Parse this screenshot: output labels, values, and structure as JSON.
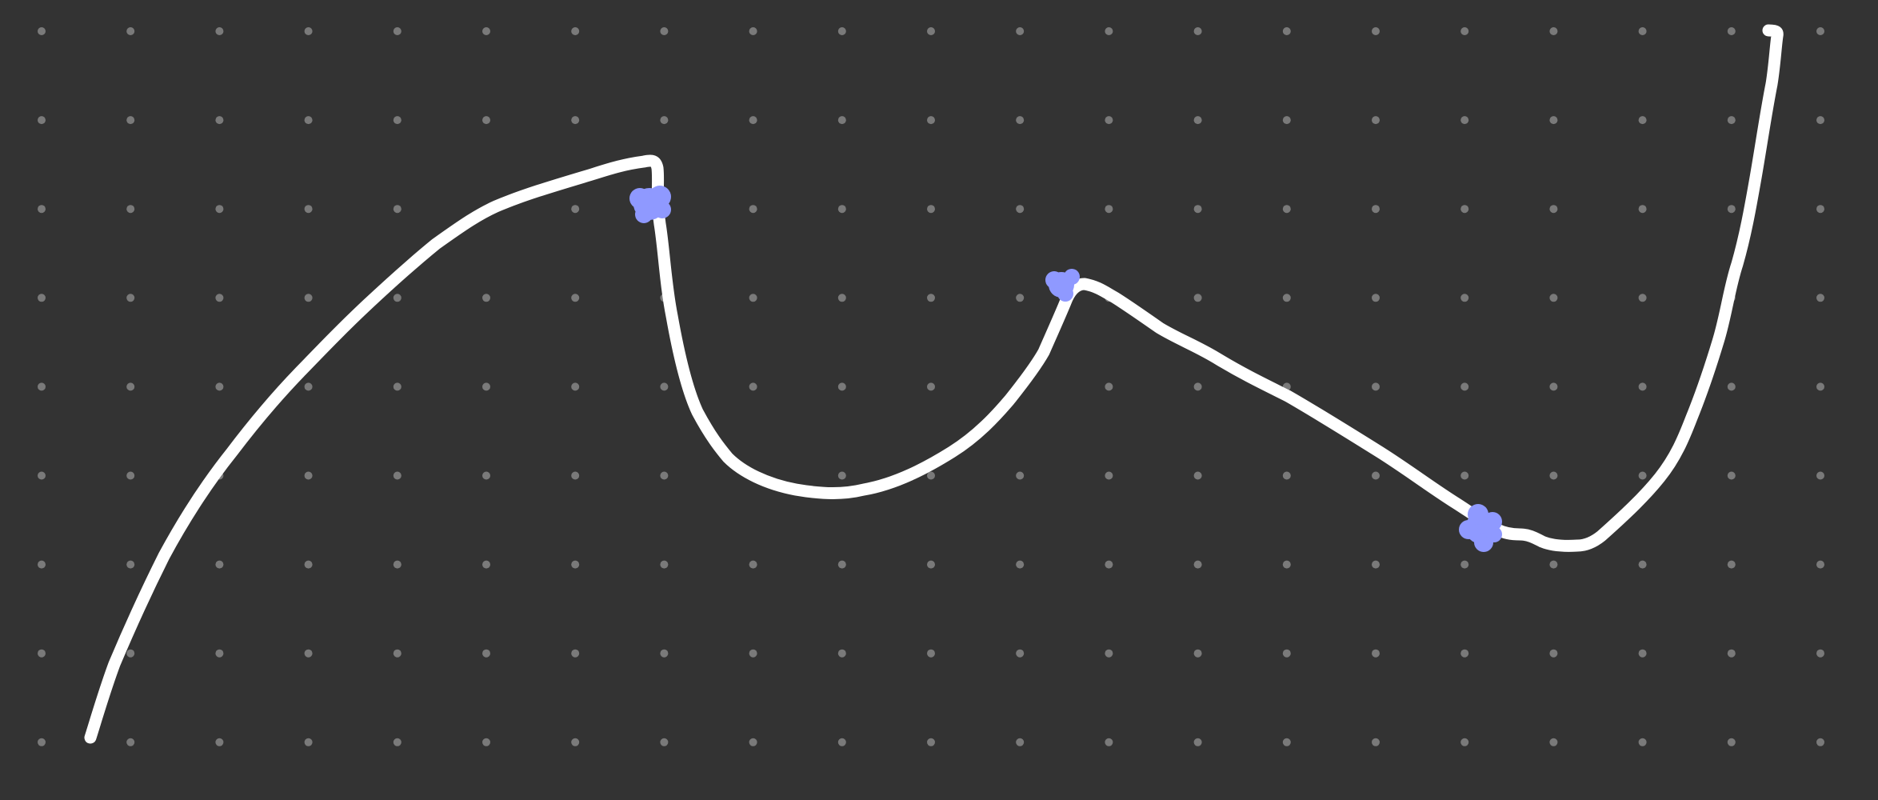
{
  "canvas": {
    "background_color": "#333333",
    "grid": {
      "style": "dots",
      "dot_color": "#7a7a7a",
      "columns": 21,
      "rows": 9
    },
    "stroke": {
      "color": "#ffffff",
      "description": "freehand curve"
    },
    "markers": {
      "color": "#8f99ff",
      "count": 3,
      "shape": "scribbled blob"
    }
  }
}
